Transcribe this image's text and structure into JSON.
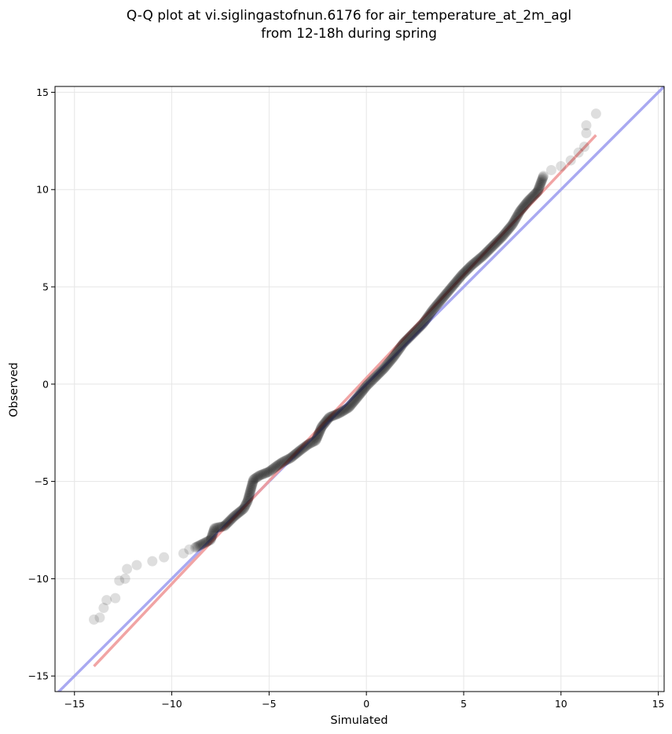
{
  "chart_data": {
    "type": "scatter",
    "title_lines": [
      "Q-Q plot at vi.siglingastofnun.6176 for air_temperature_at_2m_agl",
      "from 12-18h during spring"
    ],
    "xlabel": "Simulated",
    "ylabel": "Observed",
    "xlim": [
      -16,
      15.3
    ],
    "ylim": [
      -15.8,
      15.3
    ],
    "xticks": [
      -15,
      -10,
      -5,
      0,
      5,
      10,
      15
    ],
    "yticks": [
      -15,
      -10,
      -5,
      0,
      5,
      10,
      15
    ],
    "xtick_labels": [
      "−15",
      "−10",
      "−5",
      "0",
      "5",
      "10",
      "15"
    ],
    "ytick_labels": [
      "−15",
      "−10",
      "−5",
      "0",
      "5",
      "10",
      "15"
    ],
    "grid": true,
    "identity_line": {
      "color": "#a0a0f0",
      "from": [
        -16,
        -16
      ],
      "to": [
        15.3,
        15.3
      ]
    },
    "fit_line": {
      "color": "#f09a9a",
      "from": [
        -14,
        -14.5
      ],
      "to": [
        11.8,
        12.8
      ]
    },
    "point_color": "#000000",
    "points": [
      [
        -14,
        -12.1
      ],
      [
        -13.7,
        -12.0
      ],
      [
        -13.5,
        -11.5
      ],
      [
        -13.35,
        -11.1
      ],
      [
        -12.9,
        -11.0
      ],
      [
        -12.7,
        -10.1
      ],
      [
        -12.4,
        -10.0
      ],
      [
        -12.3,
        -9.5
      ],
      [
        -11.8,
        -9.3
      ],
      [
        -11.0,
        -9.1
      ],
      [
        -10.4,
        -8.9
      ],
      [
        -9.4,
        -8.7
      ],
      [
        -9.1,
        -8.5
      ],
      [
        -8.8,
        -8.4
      ],
      [
        -8.4,
        -8.2
      ],
      [
        -8.0,
        -8.0
      ],
      [
        -7.8,
        -7.4
      ],
      [
        -7.3,
        -7.3
      ],
      [
        -6.8,
        -6.8
      ],
      [
        -6.3,
        -6.4
      ],
      [
        -6.1,
        -6.0
      ],
      [
        -5.8,
        -4.9
      ],
      [
        -5.5,
        -4.7
      ],
      [
        -5.0,
        -4.5
      ],
      [
        -4.6,
        -4.2
      ],
      [
        -4.3,
        -4.0
      ],
      [
        -3.9,
        -3.8
      ],
      [
        -3.4,
        -3.4
      ],
      [
        -3.0,
        -3.1
      ],
      [
        -2.6,
        -2.9
      ],
      [
        -2.3,
        -2.2
      ],
      [
        -1.9,
        -1.7
      ],
      [
        -1.4,
        -1.5
      ],
      [
        -0.9,
        -1.2
      ],
      [
        -0.4,
        -0.6
      ],
      [
        0.0,
        -0.1
      ],
      [
        0.4,
        0.3
      ],
      [
        0.9,
        0.8
      ],
      [
        1.4,
        1.4
      ],
      [
        1.9,
        2.1
      ],
      [
        2.4,
        2.6
      ],
      [
        2.9,
        3.1
      ],
      [
        3.4,
        3.8
      ],
      [
        3.9,
        4.4
      ],
      [
        4.4,
        5.0
      ],
      [
        4.9,
        5.6
      ],
      [
        5.4,
        6.1
      ],
      [
        6.0,
        6.6
      ],
      [
        6.5,
        7.1
      ],
      [
        7.0,
        7.6
      ],
      [
        7.5,
        8.2
      ],
      [
        7.9,
        8.9
      ],
      [
        8.3,
        9.4
      ],
      [
        8.8,
        9.9
      ],
      [
        9.1,
        10.7
      ],
      [
        9.5,
        11.0
      ],
      [
        10.0,
        11.2
      ],
      [
        10.5,
        11.5
      ],
      [
        10.9,
        11.9
      ],
      [
        11.2,
        12.2
      ],
      [
        11.3,
        12.9
      ],
      [
        11.3,
        13.3
      ],
      [
        11.8,
        13.9
      ]
    ]
  }
}
